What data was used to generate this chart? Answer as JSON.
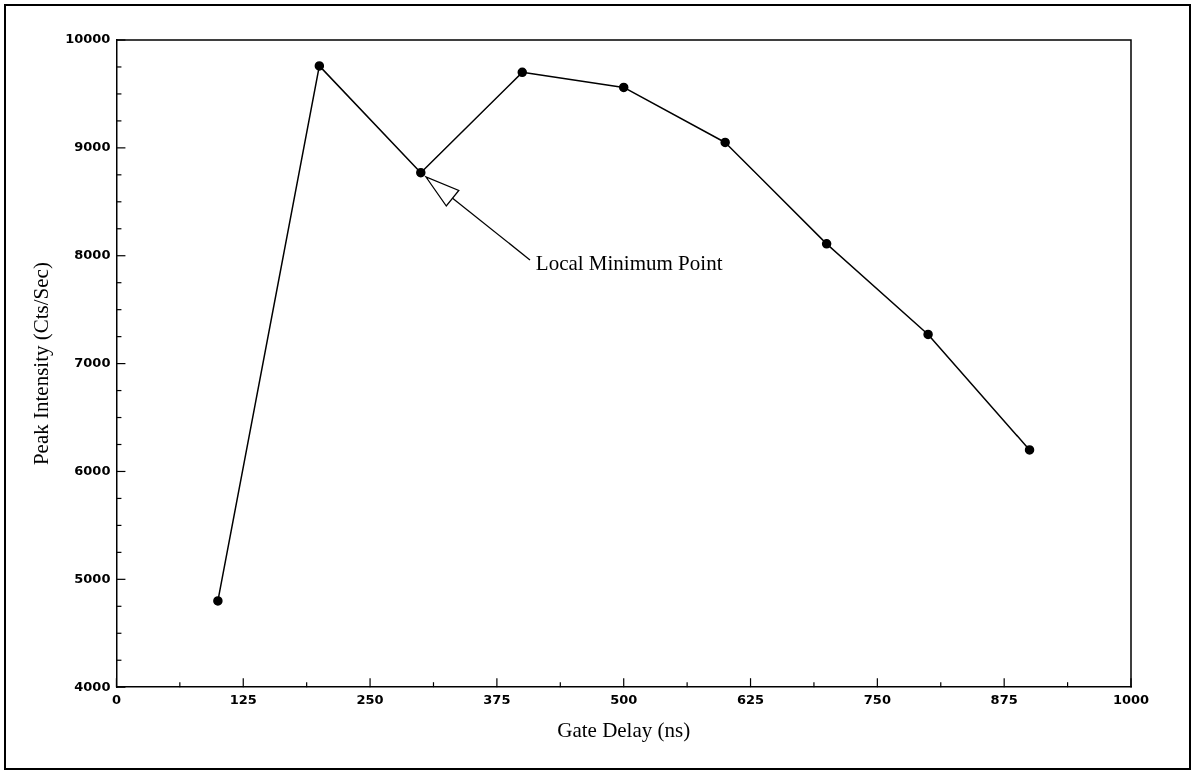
{
  "chart_data": {
    "type": "line",
    "xlabel": "Gate Delay (ns)",
    "ylabel": "Peak Intensity (Cts/Sec)",
    "x": [
      100,
      200,
      300,
      400,
      500,
      600,
      700,
      800,
      900
    ],
    "series": [
      {
        "color": "#000000",
        "values": [
          4800,
          9760,
          8770,
          9700,
          9560,
          9050,
          8110,
          7270,
          6200
        ]
      }
    ],
    "xlim": [
      0,
      1000
    ],
    "xticks": [
      0,
      {
        "value": 62.5,
        "label": null
      },
      125,
      {
        "value": 187.5,
        "label": null
      },
      250,
      {
        "value": 312.5,
        "label": null
      },
      375,
      {
        "value": 437.5,
        "label": null
      },
      500,
      {
        "value": 562.5,
        "label": null
      },
      625,
      {
        "value": 687.5,
        "label": null
      },
      750,
      {
        "value": 812.5,
        "label": null
      },
      875,
      {
        "value": 937.5,
        "label": null
      },
      1000
    ],
    "ylim": [
      4000,
      10000
    ],
    "yticks": [
      4000,
      {
        "value": 4250,
        "label": null
      },
      {
        "value": 4500,
        "label": null
      },
      {
        "value": 4750,
        "label": null
      },
      5000,
      {
        "value": 5250,
        "label": null
      },
      {
        "value": 5500,
        "label": null
      },
      {
        "value": 5750,
        "label": null
      },
      6000,
      {
        "value": 6250,
        "label": null
      },
      {
        "value": 6500,
        "label": null
      },
      {
        "value": 6750,
        "label": null
      },
      7000,
      {
        "value": 7250,
        "label": null
      },
      {
        "value": 7500,
        "label": null
      },
      {
        "value": 7750,
        "label": null
      },
      8000,
      {
        "value": 8250,
        "label": null
      },
      {
        "value": 8500,
        "label": null
      },
      {
        "value": 8750,
        "label": null
      },
      9000,
      {
        "value": 9250,
        "label": null
      },
      {
        "value": 9500,
        "label": null
      },
      {
        "value": 9750,
        "label": null
      },
      10000
    ],
    "annotations": [
      "Local Minimum Point"
    ],
    "grid": false,
    "legend": false,
    "marker": "circle",
    "line_style": "solid"
  }
}
